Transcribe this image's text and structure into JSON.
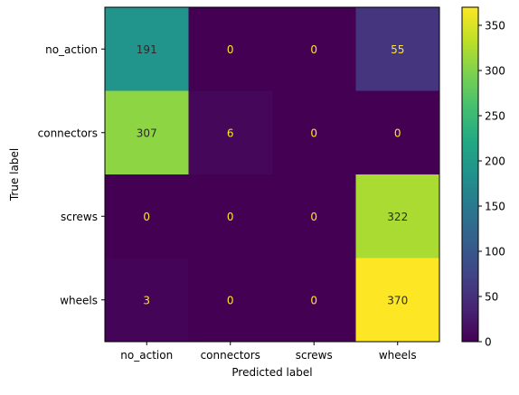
{
  "chart_data": {
    "type": "heatmap",
    "xlabel": "Predicted label",
    "ylabel": "True label",
    "x_categories": [
      "no_action",
      "connectors",
      "screws",
      "wheels"
    ],
    "y_categories": [
      "no_action",
      "connectors",
      "screws",
      "wheels"
    ],
    "values": [
      [
        191,
        0,
        0,
        55
      ],
      [
        307,
        6,
        0,
        0
      ],
      [
        0,
        0,
        0,
        322
      ],
      [
        3,
        0,
        0,
        370
      ]
    ],
    "colorscale": "viridis",
    "color_range": [
      0,
      370
    ],
    "colorbar_ticks": [
      0,
      50,
      100,
      150,
      200,
      250,
      300,
      350
    ],
    "grid": false,
    "colors": {
      "text_on_dark": "#fde725",
      "text_on_light": "#2a2a2a"
    }
  }
}
